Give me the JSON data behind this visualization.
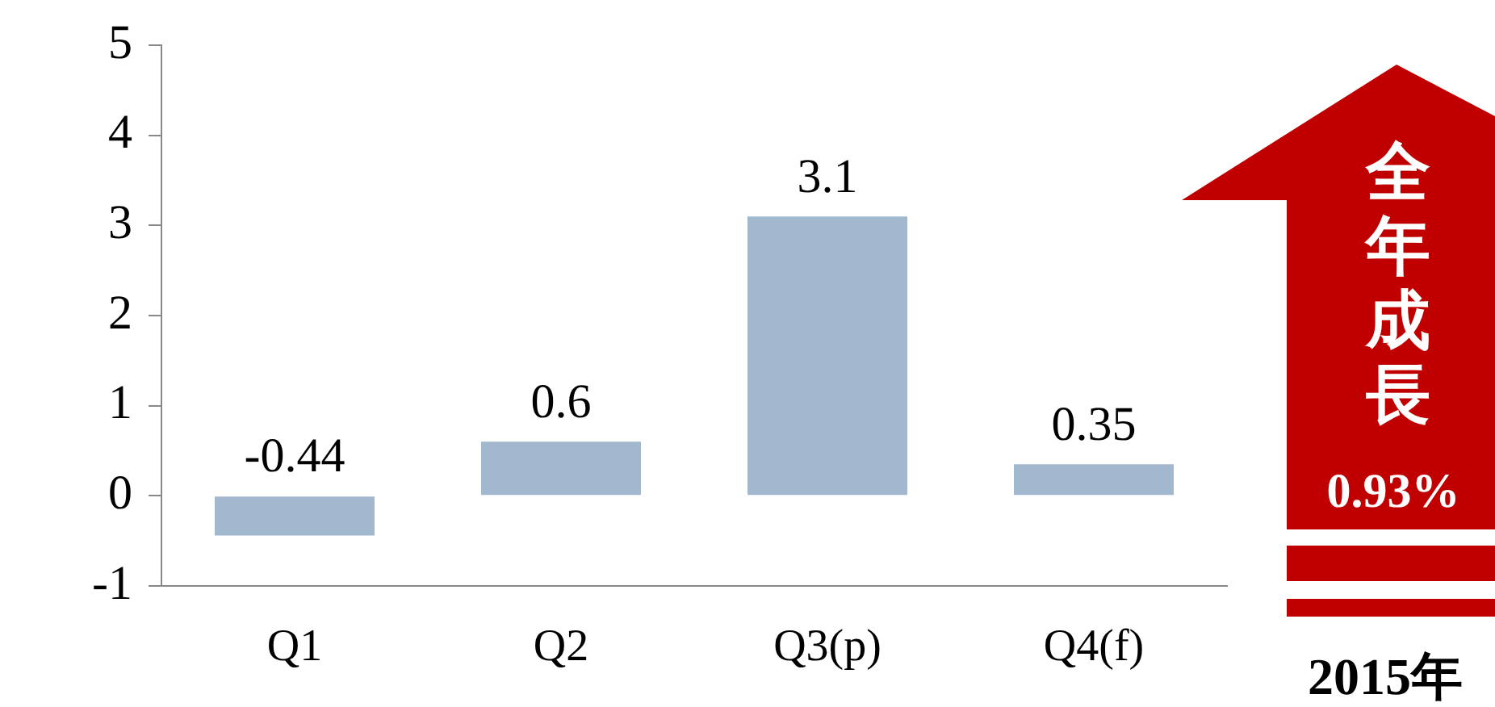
{
  "chart_data": {
    "type": "bar",
    "categories": [
      "Q1",
      "Q2",
      "Q3(p)",
      "Q4(f)"
    ],
    "values": [
      -0.44,
      0.6,
      3.1,
      0.35
    ],
    "color": "#a2b8cf",
    "ylim": [
      -1,
      5
    ],
    "yticks": [
      -1,
      0,
      1,
      2,
      3,
      4,
      5
    ],
    "grid": false,
    "legend": false,
    "data_labels": true,
    "annotations": [
      "全年成長",
      "0.93%",
      "2015年"
    ]
  }
}
